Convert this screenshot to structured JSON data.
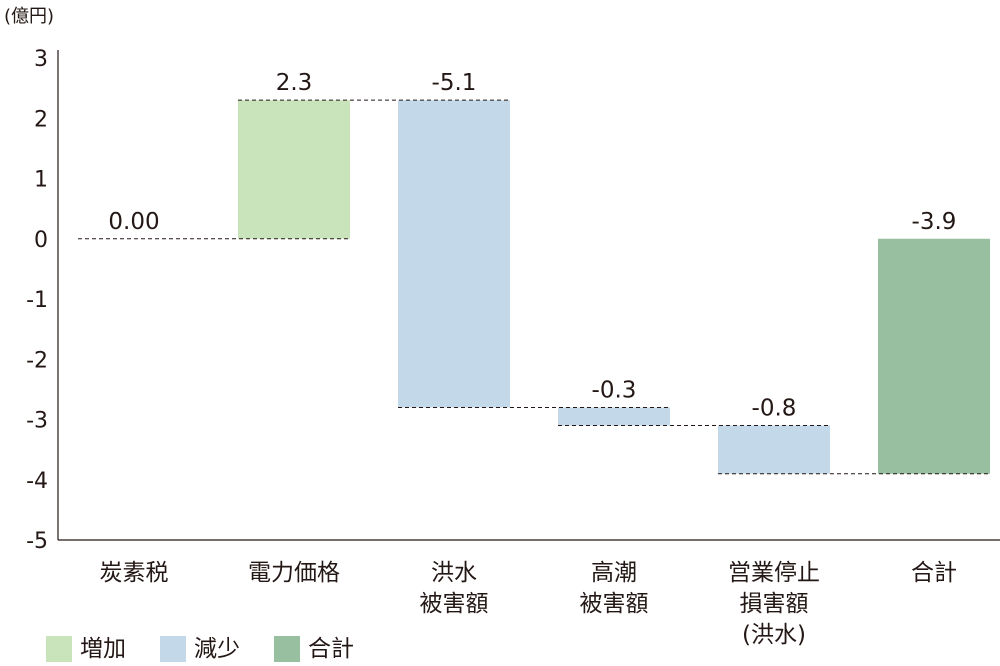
{
  "chart_data": {
    "type": "bar",
    "subtype": "waterfall",
    "unit_label": "(億円)",
    "ylim": [
      -5,
      3
    ],
    "yticks": [
      3,
      2,
      1,
      0,
      -1,
      -2,
      -3,
      -4,
      -5
    ],
    "categories": [
      [
        "炭素税"
      ],
      [
        "電力価格"
      ],
      [
        "洪水",
        "被害額"
      ],
      [
        "高潮",
        "被害額"
      ],
      [
        "営業停止",
        "損害額",
        "(洪水)"
      ],
      [
        "合計"
      ]
    ],
    "values": [
      0.0,
      2.3,
      -5.1,
      -0.3,
      -0.8,
      -3.9
    ],
    "value_labels": [
      "0.00",
      "2.3",
      "-5.1",
      "-0.3",
      "-0.8",
      "-3.9"
    ],
    "kinds": [
      "increase",
      "increase",
      "decrease",
      "decrease",
      "decrease",
      "total"
    ],
    "legend": [
      {
        "name": "増加",
        "kind": "increase",
        "color": "#c9e4bb"
      },
      {
        "name": "減少",
        "kind": "decrease",
        "color": "#c3d9ea"
      },
      {
        "name": "合計",
        "kind": "total",
        "color": "#98bf9f"
      }
    ]
  }
}
